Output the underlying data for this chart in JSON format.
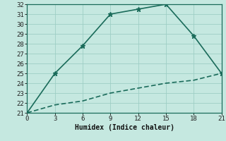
{
  "line1_x": [
    0,
    3,
    6,
    9,
    12,
    15,
    18,
    21
  ],
  "line1_y": [
    21.0,
    21.8,
    22.2,
    23.0,
    23.5,
    24.0,
    24.3,
    25.0
  ],
  "line2_x": [
    0,
    3,
    6,
    9,
    12,
    15,
    18,
    21
  ],
  "line2_y": [
    21.0,
    25.0,
    27.8,
    31.0,
    31.5,
    32.0,
    28.8,
    25.0
  ],
  "line_color": "#1a6b5a",
  "bg_color": "#c5e8e0",
  "grid_color": "#9ecec5",
  "xlabel": "Humidex (Indice chaleur)",
  "xlim": [
    0,
    21
  ],
  "ylim": [
    21,
    32
  ],
  "xticks": [
    0,
    3,
    6,
    9,
    12,
    15,
    18,
    21
  ],
  "yticks": [
    21,
    22,
    23,
    24,
    25,
    26,
    27,
    28,
    29,
    30,
    31,
    32
  ],
  "marker": "*",
  "markersize": 5,
  "linewidth": 1.2,
  "tick_labelsize": 6.5
}
